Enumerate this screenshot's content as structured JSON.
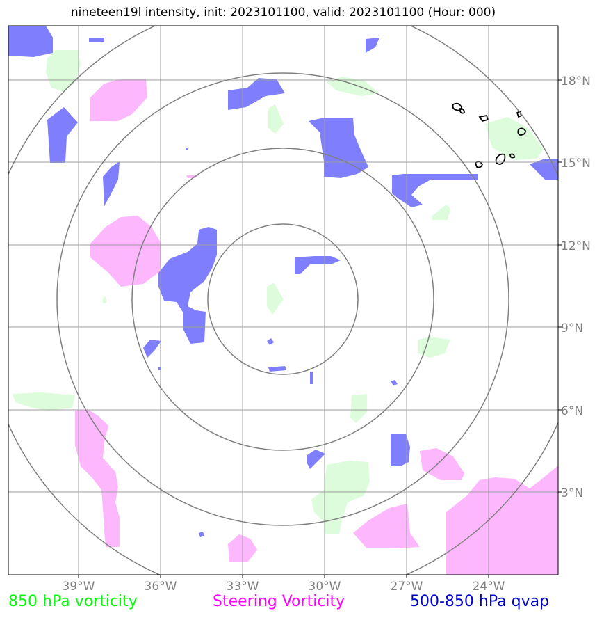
{
  "title": "nineteen19l intensity, init: 2023101100, valid: 2023101100 (Hour: 000)",
  "axes": {
    "lon_ticks": [
      "39°W",
      "36°W",
      "33°W",
      "30°W",
      "27°W",
      "24°W"
    ],
    "lat_ticks": [
      "18°N",
      "15°N",
      "12°N",
      "9°N",
      "6°N",
      "3°N"
    ]
  },
  "map_extent": {
    "lon_min": -41.5,
    "lon_max": -21.4,
    "lat_min": 0,
    "lat_max": 20
  },
  "storm_center": {
    "lon": -31.5,
    "lat": 10.0
  },
  "range_rings_deg": [
    2.75,
    5.5,
    8.25,
    11.0
  ],
  "legend": {
    "vorticity_850": {
      "label": "850 hPa vorticity",
      "color": "#00ff00"
    },
    "steering_vorticity": {
      "label": "Steering Vorticity",
      "color": "#ff00ff"
    },
    "qvap": {
      "label": "500-850 hPa qvap",
      "color": "#0000cc"
    }
  },
  "fill_colors": {
    "green": "#dcfcdc",
    "magenta": "#fdb7fd",
    "blue": "#7f7ffd"
  }
}
